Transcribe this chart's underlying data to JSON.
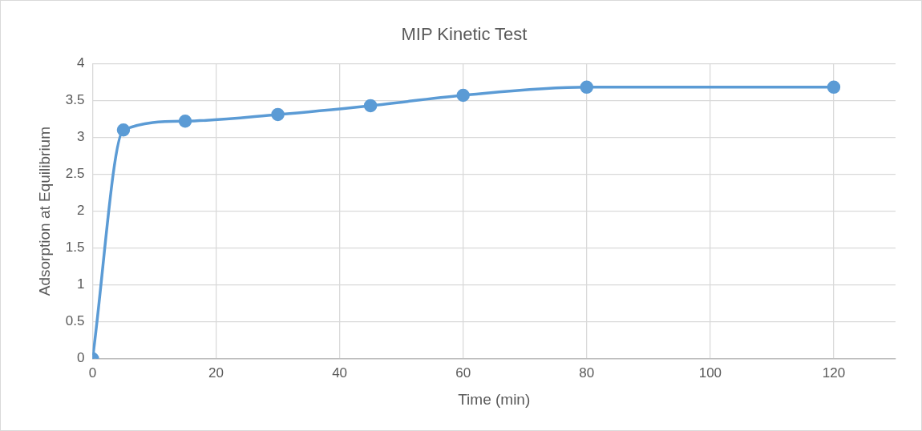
{
  "chart_data": {
    "type": "line",
    "title": "MIP Kinetic Test",
    "xlabel": "Time (min)",
    "ylabel": "Adsorption at Equilibrium",
    "x": [
      0,
      5,
      15,
      30,
      45,
      60,
      80,
      120
    ],
    "series": [
      {
        "color": "#5b9bd5",
        "values": [
          0,
          3.1,
          3.22,
          3.31,
          3.43,
          3.57,
          3.68,
          3.68
        ]
      }
    ],
    "xlim": [
      0,
      130
    ],
    "xticks": [
      0,
      20,
      40,
      60,
      80,
      100,
      120
    ],
    "ylim": [
      0,
      4
    ],
    "yticks": [
      0,
      0.5,
      1,
      1.5,
      2,
      2.5,
      3,
      3.5,
      4
    ],
    "grid": true,
    "legend": false,
    "marker": "circle",
    "line_style": "solid"
  }
}
